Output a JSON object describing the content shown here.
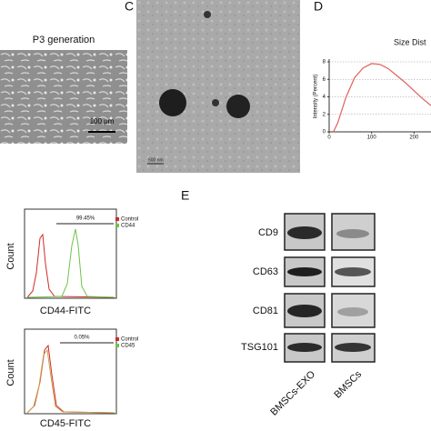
{
  "panels": {
    "a": {
      "title": "P3 generation",
      "scale_bar": "100 μm"
    },
    "c": {
      "label": "C",
      "scale_bar": "500 nm"
    },
    "d": {
      "label": "D"
    },
    "flow": [
      {
        "percent": "99.45%",
        "legend": [
          "Control",
          "CD44"
        ],
        "y_label": "Count",
        "x_label": "CD44-FITC"
      },
      {
        "percent": "0.05%",
        "legend": [
          "Control",
          "CD45"
        ],
        "y_label": "Count",
        "x_label": "CD45-FITC"
      }
    ],
    "blot": {
      "label": "E",
      "rows": [
        "CD9",
        "CD63",
        "CD81",
        "TSG101"
      ],
      "columns": [
        "BMSCs-EXO",
        "BMSCs"
      ]
    }
  },
  "chart_data": {
    "type": "line",
    "title": "Size Dist",
    "y_label": "Intensity (Percent)",
    "x": [
      10,
      20,
      40,
      60,
      80,
      100,
      120,
      140,
      160,
      180,
      200,
      220,
      240
    ],
    "values": [
      0,
      1,
      4,
      6.2,
      7.3,
      7.8,
      7.7,
      7.2,
      6.4,
      5.6,
      4.7,
      3.8,
      3.0
    ],
    "color": "#e06060",
    "xlim": [
      0,
      240
    ],
    "xticks": [
      0,
      100,
      200
    ],
    "ylim": [
      0,
      8
    ],
    "yticks": [
      0,
      2,
      4,
      6,
      8
    ],
    "grid": true
  }
}
